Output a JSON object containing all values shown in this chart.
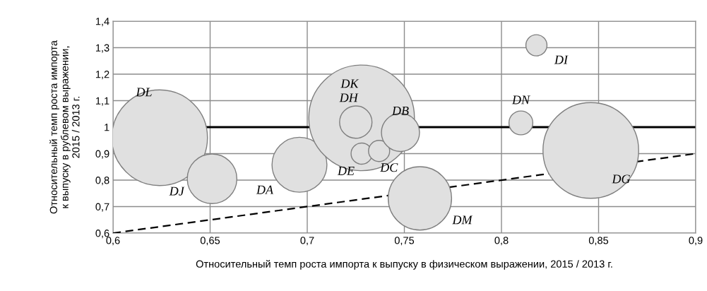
{
  "chart_data": {
    "type": "bubble",
    "xlabel": "Относительный темп роста импорта к выпуску в физическом выражении, 2015 / 2013 г.",
    "ylabel": "Относительный темп роста импорта\nк выпуску в рублевом выражении,\n2015 / 2013 г.",
    "xlim": [
      0.6,
      0.9
    ],
    "ylim": [
      0.6,
      1.4
    ],
    "xticks": [
      {
        "value": 0.6,
        "label": "0,6"
      },
      {
        "value": 0.65,
        "label": "0,65"
      },
      {
        "value": 0.7,
        "label": "0,7"
      },
      {
        "value": 0.75,
        "label": "0,75"
      },
      {
        "value": 0.8,
        "label": "0,8"
      },
      {
        "value": 0.85,
        "label": "0,85"
      },
      {
        "value": 0.9,
        "label": "0,9"
      }
    ],
    "yticks": [
      {
        "value": 0.6,
        "label": "0,6"
      },
      {
        "value": 0.7,
        "label": "0,7"
      },
      {
        "value": 0.8,
        "label": "0,8"
      },
      {
        "value": 0.9,
        "label": "0,9"
      },
      {
        "value": 1.0,
        "label": "1"
      },
      {
        "value": 1.1,
        "label": "1,1"
      },
      {
        "value": 1.2,
        "label": "1,2"
      },
      {
        "value": 1.3,
        "label": "1,3"
      },
      {
        "value": 1.4,
        "label": "1,4"
      }
    ],
    "grid": true,
    "ref_lines": [
      {
        "axis": "y",
        "value": 1.0,
        "color": "#000000",
        "line_style": "solid"
      }
    ],
    "series": [
      {
        "name": "DL",
        "color": "#e0e0e0",
        "x": [
          0.624
        ],
        "values": [
          0.96
        ],
        "sizes": [
          0.82
        ]
      },
      {
        "name": "DJ",
        "color": "#e0e0e0",
        "x": [
          0.651
        ],
        "values": [
          0.805
        ],
        "sizes": [
          0.22
        ]
      },
      {
        "name": "DA",
        "color": "#e0e0e0",
        "x": [
          0.696
        ],
        "values": [
          0.858
        ],
        "sizes": [
          0.27
        ]
      },
      {
        "name": "DK",
        "color": "#e0e0e0",
        "x": [
          0.728
        ],
        "values": [
          1.035
        ],
        "sizes": [
          1
        ]
      },
      {
        "name": "DH",
        "color": "#e0e0e0",
        "x": [
          0.725
        ],
        "values": [
          1.019
        ],
        "sizes": [
          0.094
        ]
      },
      {
        "name": "DE",
        "color": "#e0e0e0",
        "x": [
          0.728
        ],
        "values": [
          0.9
        ],
        "sizes": [
          0.04
        ]
      },
      {
        "name": "DC",
        "color": "#e0e0e0",
        "x": [
          0.737
        ],
        "values": [
          0.91
        ],
        "sizes": [
          0.04
        ]
      },
      {
        "name": "DB",
        "color": "#e0e0e0",
        "x": [
          0.748
        ],
        "values": [
          0.98
        ],
        "sizes": [
          0.13
        ]
      },
      {
        "name": "DM",
        "color": "#e0e0e0",
        "x": [
          0.758
        ],
        "values": [
          0.731
        ],
        "sizes": [
          0.36
        ]
      },
      {
        "name": "DN",
        "color": "#e0e0e0",
        "x": [
          0.81
        ],
        "values": [
          1.016
        ],
        "sizes": [
          0.051
        ]
      },
      {
        "name": "DI",
        "color": "#e0e0e0",
        "x": [
          0.818
        ],
        "values": [
          1.309
        ],
        "sizes": [
          0.04
        ]
      },
      {
        "name": "DG",
        "color": "#e0e0e0",
        "x": [
          0.846
        ],
        "values": [
          0.912
        ],
        "sizes": [
          0.82
        ]
      },
      {
        "type": "line",
        "color": "#000000",
        "line_style": "dashed",
        "marker": "none",
        "x": [
          0.6,
          0.9
        ],
        "values": [
          0.6,
          0.9
        ]
      }
    ]
  }
}
